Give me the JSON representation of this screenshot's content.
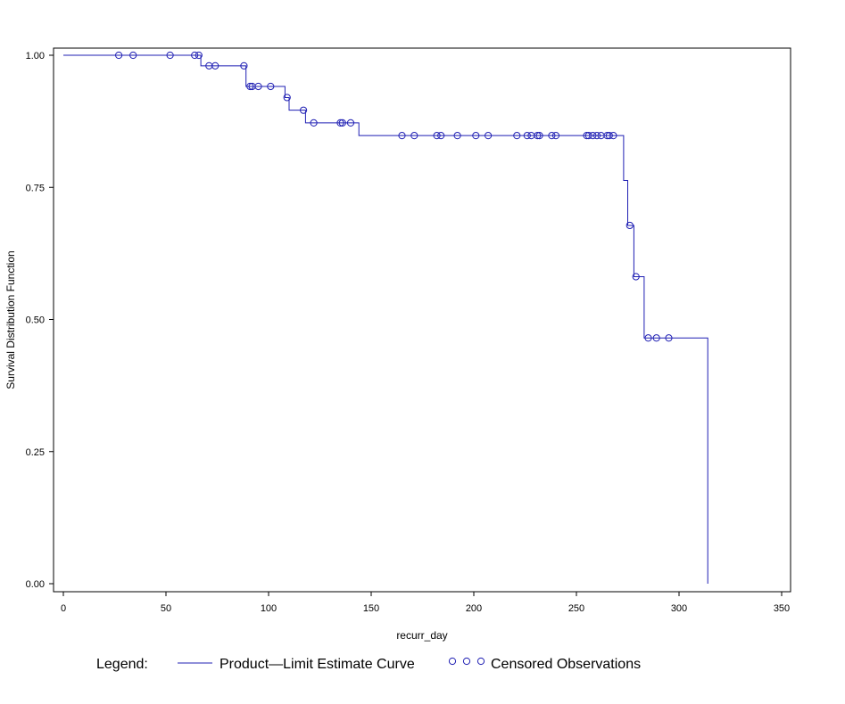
{
  "chart_data": {
    "type": "line",
    "title": "",
    "xlabel": "recurr_day",
    "ylabel": "Survival Distribution Function",
    "xlim": [
      0,
      350
    ],
    "ylim": [
      0,
      1
    ],
    "x_ticks": [
      "0",
      "50",
      "100",
      "150",
      "200",
      "250",
      "300",
      "350"
    ],
    "x_tick_values": [
      0,
      50,
      100,
      150,
      200,
      250,
      300,
      350
    ],
    "y_ticks": [
      "0.00",
      "0.25",
      "0.50",
      "0.75",
      "1.00"
    ],
    "y_tick_values": [
      0,
      0.25,
      0.5,
      0.75,
      1.0
    ],
    "grid": false,
    "color": "#1f1fb3",
    "series": [
      {
        "name": "Product-Limit Estimate Curve",
        "style": "step",
        "x": [
          0,
          67,
          89,
          108,
          110,
          118,
          144,
          273,
          275,
          278,
          283,
          314,
          314
        ],
        "y": [
          1.0,
          0.98,
          0.941,
          0.92,
          0.896,
          0.872,
          0.848,
          0.763,
          0.678,
          0.581,
          0.465,
          0.465,
          0.0
        ]
      },
      {
        "name": "Censored Observations",
        "style": "marker",
        "points": [
          [
            27,
            1.0
          ],
          [
            34,
            1.0
          ],
          [
            52,
            1.0
          ],
          [
            64,
            1.0
          ],
          [
            66,
            1.0
          ],
          [
            71,
            0.98
          ],
          [
            74,
            0.98
          ],
          [
            88,
            0.98
          ],
          [
            91,
            0.941
          ],
          [
            92,
            0.941
          ],
          [
            95,
            0.941
          ],
          [
            101,
            0.941
          ],
          [
            109,
            0.92
          ],
          [
            117,
            0.896
          ],
          [
            122,
            0.872
          ],
          [
            135,
            0.872
          ],
          [
            136,
            0.872
          ],
          [
            140,
            0.872
          ],
          [
            165,
            0.848
          ],
          [
            171,
            0.848
          ],
          [
            182,
            0.848
          ],
          [
            184,
            0.848
          ],
          [
            192,
            0.848
          ],
          [
            201,
            0.848
          ],
          [
            207,
            0.848
          ],
          [
            221,
            0.848
          ],
          [
            226,
            0.848
          ],
          [
            228,
            0.848
          ],
          [
            231,
            0.848
          ],
          [
            232,
            0.848
          ],
          [
            238,
            0.848
          ],
          [
            240,
            0.848
          ],
          [
            255,
            0.848
          ],
          [
            256,
            0.848
          ],
          [
            258,
            0.848
          ],
          [
            260,
            0.848
          ],
          [
            262,
            0.848
          ],
          [
            265,
            0.848
          ],
          [
            266,
            0.848
          ],
          [
            268,
            0.848
          ],
          [
            276,
            0.678
          ],
          [
            279,
            0.581
          ],
          [
            285,
            0.465
          ],
          [
            289,
            0.465
          ],
          [
            295,
            0.465
          ]
        ]
      }
    ],
    "legend": {
      "label": "Legend:",
      "curve_label": "Product—Limit Estimate Curve",
      "censored_label": "Censored Observations",
      "placement": "bottom"
    }
  }
}
